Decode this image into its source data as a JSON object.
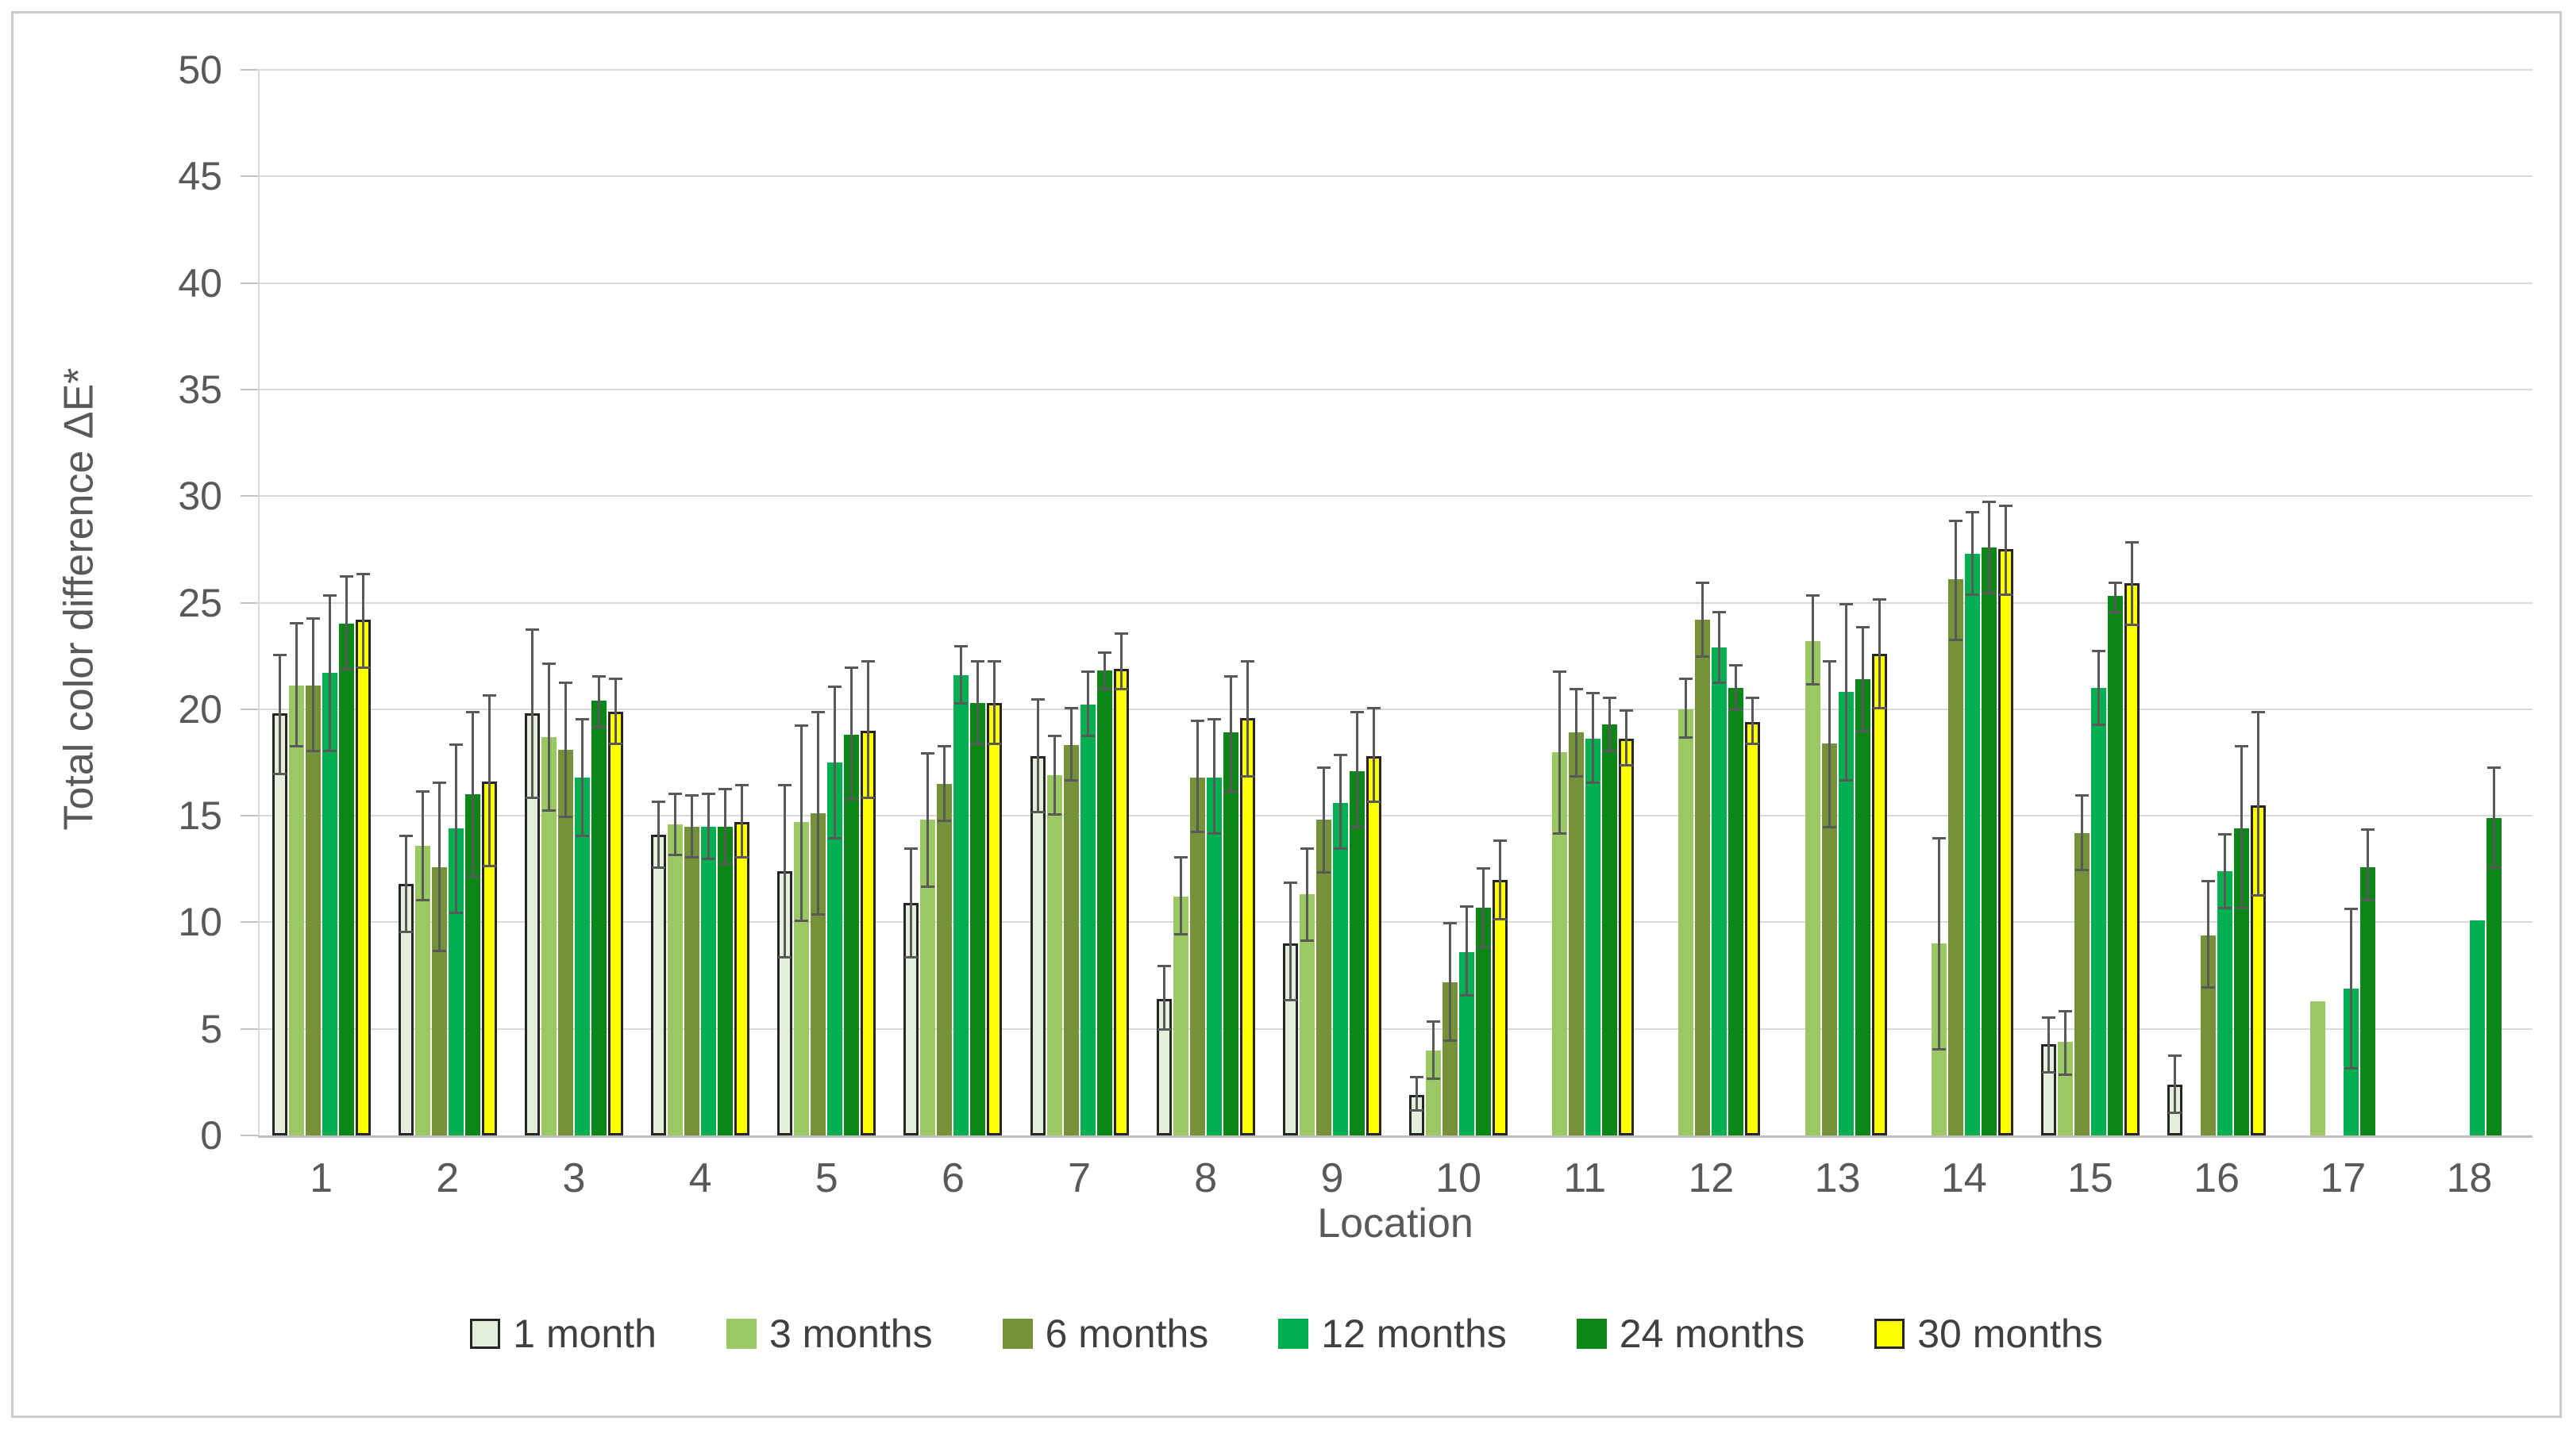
{
  "figure": {
    "background": "#FFFFFF",
    "border_color": "#CBCBCB"
  },
  "axes": {
    "y_title": "Total color difference ΔE*",
    "x_title": "Location",
    "y_ticks": [
      "0",
      "5",
      "10",
      "15",
      "20",
      "25",
      "30",
      "35",
      "40",
      "45",
      "50"
    ],
    "grid_color": "#D9D9D9",
    "error_bar_color": "#595959",
    "text_color": "#595959"
  },
  "chart_data": {
    "type": "bar",
    "title": "",
    "xlabel": "Location",
    "ylabel": "Total color difference ΔE*",
    "ylim": [
      0,
      50
    ],
    "ytick_step": 5,
    "grid": true,
    "legend_position": "bottom",
    "error_bars": true,
    "categories": [
      "1",
      "2",
      "3",
      "4",
      "5",
      "6",
      "7",
      "8",
      "9",
      "10",
      "11",
      "12",
      "13",
      "14",
      "15",
      "16",
      "17",
      "18"
    ],
    "series": [
      {
        "name": "1 month",
        "color": "#E3EFDA",
        "border_color": "#262626",
        "values": [
          19.8,
          11.8,
          19.8,
          14.1,
          12.4,
          10.9,
          17.8,
          6.4,
          9.0,
          1.9,
          null,
          null,
          null,
          null,
          4.3,
          2.4,
          null,
          null
        ],
        "err_low": [
          16.9,
          9.5,
          15.8,
          12.5,
          8.3,
          8.3,
          15.1,
          4.9,
          6.3,
          1.1,
          null,
          null,
          null,
          null,
          2.9,
          1.0,
          null,
          null
        ],
        "err_high": [
          22.6,
          14.1,
          23.8,
          15.7,
          16.5,
          13.5,
          20.5,
          8.0,
          11.9,
          2.8,
          null,
          null,
          null,
          null,
          5.6,
          3.8,
          null,
          null
        ]
      },
      {
        "name": "3 months",
        "color": "#9CC863",
        "border_color": null,
        "values": [
          21.1,
          13.6,
          18.7,
          14.6,
          14.7,
          14.8,
          16.9,
          11.2,
          11.3,
          4.0,
          18.0,
          20.0,
          23.2,
          9.0,
          4.4,
          null,
          6.3,
          null
        ],
        "err_low": [
          18.2,
          11.0,
          15.2,
          13.1,
          10.0,
          11.6,
          15.0,
          9.4,
          9.1,
          2.6,
          14.1,
          18.6,
          21.1,
          4.0,
          2.8,
          null,
          null,
          null
        ],
        "err_high": [
          24.1,
          16.2,
          22.2,
          16.1,
          19.3,
          18.0,
          18.8,
          13.1,
          13.5,
          5.4,
          21.8,
          21.5,
          25.4,
          14.0,
          5.9,
          null,
          null,
          null
        ]
      },
      {
        "name": "6 months",
        "color": "#75923B",
        "border_color": null,
        "values": [
          21.1,
          12.6,
          18.1,
          14.5,
          15.1,
          16.5,
          18.3,
          16.8,
          14.8,
          7.2,
          18.9,
          24.2,
          18.4,
          26.1,
          14.2,
          9.4,
          null,
          null
        ],
        "err_low": [
          18.0,
          8.6,
          14.9,
          13.0,
          10.3,
          14.7,
          16.6,
          14.2,
          12.3,
          4.4,
          16.8,
          22.4,
          14.4,
          23.2,
          12.4,
          6.9,
          null,
          null
        ],
        "err_high": [
          24.3,
          16.6,
          21.3,
          16.0,
          19.9,
          18.3,
          20.1,
          19.5,
          17.3,
          10.0,
          21.0,
          26.0,
          22.3,
          28.9,
          16.0,
          12.0,
          null,
          null
        ]
      },
      {
        "name": "12 months",
        "color": "#00B050",
        "border_color": null,
        "values": [
          21.7,
          14.4,
          16.8,
          14.5,
          17.5,
          21.6,
          20.2,
          16.8,
          15.6,
          8.6,
          18.6,
          22.9,
          20.8,
          27.3,
          21.0,
          12.4,
          6.9,
          10.1
        ],
        "err_low": [
          18.0,
          10.4,
          14.0,
          12.9,
          13.9,
          20.2,
          18.7,
          14.1,
          13.4,
          6.5,
          16.5,
          21.2,
          16.6,
          25.3,
          19.2,
          10.6,
          3.1,
          null
        ],
        "err_high": [
          25.4,
          18.4,
          19.6,
          16.1,
          21.1,
          23.0,
          21.8,
          19.6,
          17.9,
          10.8,
          20.8,
          24.6,
          25.0,
          29.3,
          22.8,
          14.2,
          10.7,
          null
        ]
      },
      {
        "name": "24 months",
        "color": "#0B8718",
        "border_color": null,
        "values": [
          24.0,
          16.0,
          20.4,
          14.5,
          18.8,
          20.3,
          21.8,
          18.9,
          17.1,
          10.7,
          19.3,
          21.0,
          21.4,
          27.6,
          25.3,
          14.4,
          12.6,
          14.9
        ],
        "err_low": [
          21.8,
          12.1,
          19.1,
          12.7,
          15.7,
          18.3,
          20.9,
          16.1,
          14.4,
          8.8,
          18.0,
          19.9,
          18.9,
          25.4,
          24.5,
          10.6,
          11.0,
          12.5
        ],
        "err_high": [
          26.3,
          19.9,
          21.6,
          16.3,
          22.0,
          22.3,
          22.7,
          21.6,
          19.9,
          12.6,
          20.6,
          22.1,
          23.9,
          29.8,
          26.0,
          18.3,
          14.4,
          17.3
        ]
      },
      {
        "name": "30 months",
        "color": "#FFFF00",
        "border_color": "#262626",
        "values": [
          24.2,
          16.6,
          19.9,
          14.7,
          19.0,
          20.3,
          21.9,
          19.6,
          17.8,
          12.0,
          18.6,
          19.4,
          22.6,
          27.5,
          25.9,
          15.5,
          null,
          null
        ],
        "err_low": [
          21.9,
          12.6,
          18.3,
          13.0,
          15.8,
          18.3,
          20.9,
          16.8,
          15.6,
          10.1,
          17.3,
          18.3,
          20.0,
          25.3,
          23.9,
          11.2,
          null,
          null
        ],
        "err_high": [
          26.4,
          20.7,
          21.5,
          16.5,
          22.3,
          22.3,
          23.6,
          22.3,
          20.1,
          13.9,
          20.0,
          20.6,
          25.2,
          29.6,
          27.9,
          19.9,
          null,
          null
        ]
      }
    ]
  }
}
